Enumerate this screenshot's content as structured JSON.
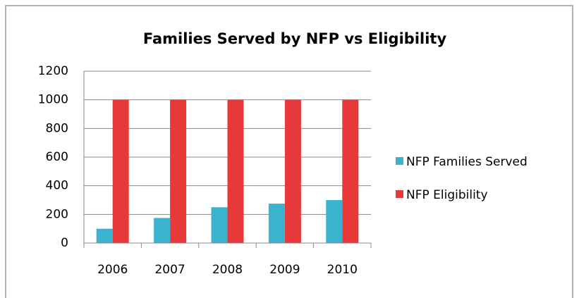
{
  "chart_data": {
    "type": "bar",
    "title": "Families Served by NFP vs Eligibility",
    "categories": [
      "2006",
      "2007",
      "2008",
      "2009",
      "2010"
    ],
    "series": [
      {
        "name": "NFP Families Served",
        "color": "#3bb3cf",
        "values": [
          100,
          175,
          250,
          275,
          300
        ]
      },
      {
        "name": "NFP Eligibility",
        "color": "#e8393a",
        "values": [
          1000,
          1000,
          1000,
          1000,
          1000
        ]
      }
    ],
    "ylim": [
      0,
      1200
    ],
    "yticks": [
      0,
      200,
      400,
      600,
      800,
      1000,
      1200
    ],
    "grid": true,
    "legend": "right"
  }
}
